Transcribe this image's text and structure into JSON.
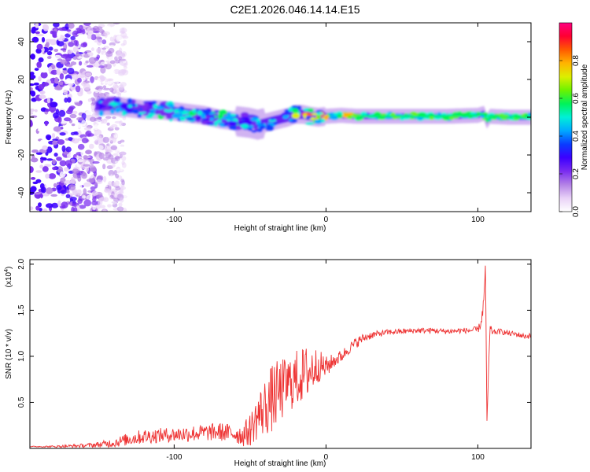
{
  "title": "C2E1.2026.046.14.14.E15",
  "chart_data": [
    {
      "type": "heatmap",
      "xlabel": "Height of straight line (km)",
      "ylabel": "Frequency (Hz)",
      "xlim": [
        -195,
        135
      ],
      "ylim": [
        -50,
        50
      ],
      "xticks": [
        -100,
        0,
        100
      ],
      "yticks": [
        -40,
        -20,
        0,
        20,
        40
      ],
      "colorbar": {
        "label": "Normalized spectral amplitude",
        "range": [
          0.0,
          1.0
        ],
        "ticks": [
          0.0,
          0.2,
          0.4,
          0.6,
          0.8
        ],
        "colors": [
          "#ffffff",
          "#e9d2f7",
          "#b482e6",
          "#7a2cf0",
          "#3c00ff",
          "#0a3cff",
          "#00aaff",
          "#00f0d8",
          "#00f25a",
          "#6cf200",
          "#dcef00",
          "#ffb400",
          "#ff5a00",
          "#ff0032",
          "#ff0080"
        ]
      },
      "ridge": {
        "x": [
          -150,
          -140,
          -130,
          -120,
          -110,
          -100,
          -90,
          -80,
          -70,
          -60,
          -50,
          -45,
          -40,
          -35,
          -30,
          -25,
          -20,
          -15,
          -10,
          -5,
          0,
          10,
          20,
          40,
          60,
          80,
          100,
          104,
          106,
          108,
          120,
          135
        ],
        "y": [
          6,
          6,
          5,
          4,
          4,
          3,
          2,
          1,
          -1,
          -2,
          -3,
          -4,
          -3,
          -2,
          -1,
          0,
          1.5,
          1.5,
          0.5,
          0,
          0.5,
          1,
          0.5,
          0.5,
          0.5,
          0.5,
          1,
          2,
          -2,
          0.5,
          0,
          0
        ]
      },
      "scatter_region": {
        "x": [
          -195,
          -140
        ],
        "y": [
          -50,
          50
        ]
      }
    },
    {
      "type": "line",
      "xlabel": "Height of straight line (km)",
      "ylabel": "SNR (10 * v/v)",
      "exponent_label": "(x10",
      "exponent_power": "4",
      "xlim": [
        -195,
        135
      ],
      "ylim": [
        0,
        2.05
      ],
      "xticks": [
        -100,
        0,
        100
      ],
      "yticks": [
        0.5,
        1.0,
        1.5,
        2.0
      ],
      "color": "#ee3333",
      "series": [
        {
          "name": "SNR",
          "x": [
            -195,
            -180,
            -160,
            -150,
            -140,
            -130,
            -120,
            -110,
            -100,
            -90,
            -80,
            -70,
            -60,
            -55,
            -50,
            -45,
            -40,
            -35,
            -30,
            -25,
            -20,
            -15,
            -10,
            -5,
            0,
            5,
            10,
            15,
            20,
            25,
            30,
            40,
            50,
            60,
            70,
            80,
            90,
            95,
            100,
            102,
            104,
            105,
            106,
            108,
            110,
            115,
            120,
            125,
            130,
            135
          ],
          "y": [
            0.02,
            0.02,
            0.03,
            0.04,
            0.06,
            0.1,
            0.13,
            0.14,
            0.15,
            0.16,
            0.17,
            0.18,
            0.16,
            0.14,
            0.2,
            0.35,
            0.45,
            0.55,
            0.62,
            0.7,
            0.75,
            0.8,
            0.85,
            0.9,
            0.88,
            0.95,
            1.0,
            1.08,
            1.15,
            1.2,
            1.23,
            1.26,
            1.27,
            1.28,
            1.28,
            1.27,
            1.28,
            1.28,
            1.29,
            1.35,
            1.6,
            2.0,
            0.3,
            1.3,
            1.26,
            1.27,
            1.25,
            1.24,
            1.22,
            1.22
          ],
          "noise": [
            0.005,
            0.01,
            0.02,
            0.03,
            0.05,
            0.07,
            0.08,
            0.08,
            0.08,
            0.09,
            0.09,
            0.1,
            0.1,
            0.12,
            0.18,
            0.25,
            0.32,
            0.38,
            0.35,
            0.3,
            0.32,
            0.3,
            0.3,
            0.18,
            0.12,
            0.08,
            0.07,
            0.06,
            0.06,
            0.05,
            0.04,
            0.03,
            0.03,
            0.03,
            0.03,
            0.03,
            0.03,
            0.03,
            0.04,
            0.05,
            0.1,
            0.0,
            0.0,
            0.05,
            0.03,
            0.03,
            0.03,
            0.03,
            0.03,
            0.03
          ]
        }
      ]
    }
  ]
}
